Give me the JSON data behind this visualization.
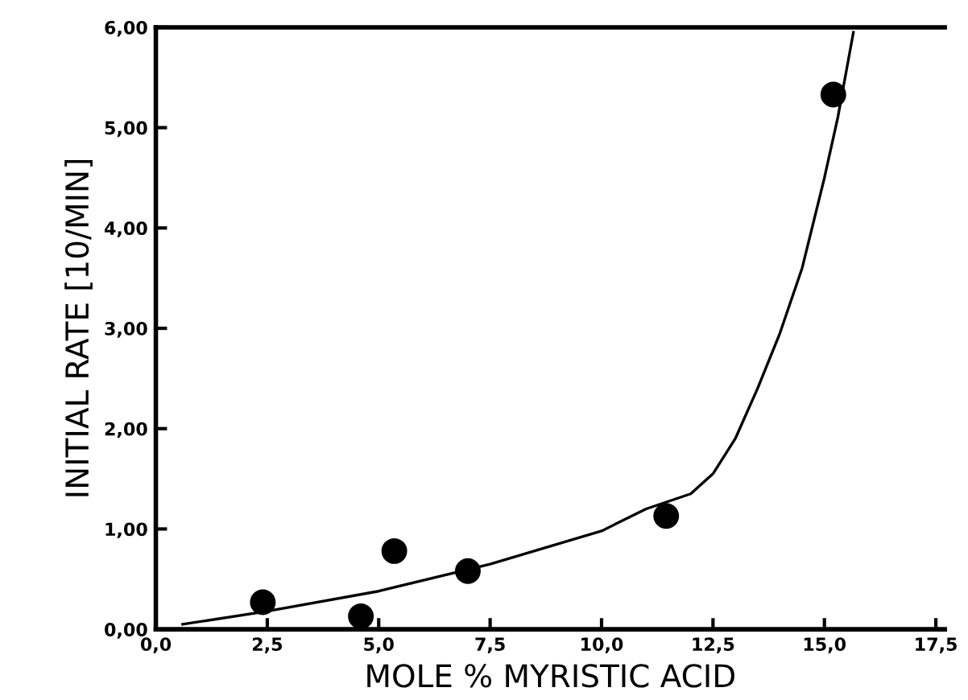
{
  "chart_data": {
    "type": "scatter",
    "xlabel": "MOLE % MYRISTIC ACID",
    "ylabel": "INITIAL RATE [10/MIN]",
    "xlim": [
      0,
      17.7
    ],
    "ylim": [
      0,
      6
    ],
    "xticks": [
      {
        "value": 0,
        "label": "0,0"
      },
      {
        "value": 2.5,
        "label": "2,5"
      },
      {
        "value": 5,
        "label": "5,0"
      },
      {
        "value": 7.5,
        "label": "7,5"
      },
      {
        "value": 10,
        "label": "10,0"
      },
      {
        "value": 12.5,
        "label": "12,5"
      },
      {
        "value": 15,
        "label": "15,0"
      },
      {
        "value": 17.5,
        "label": "17,5"
      }
    ],
    "yticks": [
      {
        "value": 0,
        "label": "0,00"
      },
      {
        "value": 1,
        "label": "1,00"
      },
      {
        "value": 2,
        "label": "2,00"
      },
      {
        "value": 3,
        "label": "3,00"
      },
      {
        "value": 4,
        "label": "4,00"
      },
      {
        "value": 5,
        "label": "5,00"
      },
      {
        "value": 6,
        "label": "6,00"
      }
    ],
    "grid": false,
    "marker": "circle",
    "series": [
      {
        "color": "#000000",
        "x": [
          2.4,
          4.6,
          5.35,
          7.0,
          11.45,
          15.2
        ],
        "values": [
          0.27,
          0.13,
          0.78,
          0.58,
          1.13,
          5.33
        ]
      },
      {
        "type": "line",
        "color": "#000000",
        "marker": "none",
        "x": [
          0.6,
          2.5,
          5,
          7.5,
          10,
          11,
          12,
          12.5,
          13,
          13.5,
          14,
          14.5,
          15,
          15.3,
          15.65
        ],
        "values": [
          0.05,
          0.18,
          0.38,
          0.65,
          0.98,
          1.2,
          1.35,
          1.55,
          1.9,
          2.4,
          2.95,
          3.6,
          4.5,
          5.1,
          5.95
        ]
      }
    ]
  }
}
